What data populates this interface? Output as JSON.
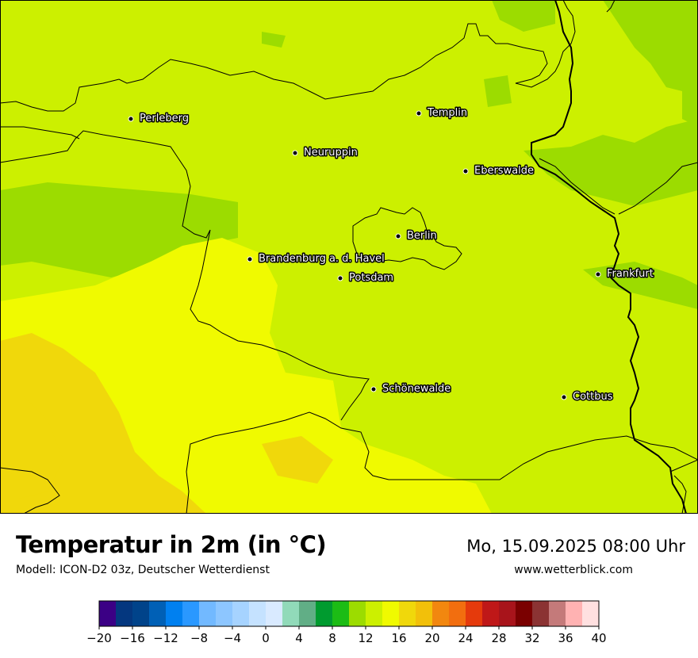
{
  "title": "Temperatur in 2m (in °C)",
  "model": "Modell: ICON-D2 03z, Deutscher Wetterdienst",
  "datetime": "Mo, 15.09.2025 08:00 Uhr",
  "website": "www.wetterblick.com",
  "cities": [
    {
      "name": "Perleberg"
    },
    {
      "name": "Templin"
    },
    {
      "name": "Neuruppin"
    },
    {
      "name": "Eberswalde"
    },
    {
      "name": "Berlin"
    },
    {
      "name": "Brandenburg a. d. Havel"
    },
    {
      "name": "Potsdam"
    },
    {
      "name": "Frankfurt"
    },
    {
      "name": "Schönewalde"
    },
    {
      "name": "Cottbus"
    }
  ],
  "colorbar": {
    "min": -20,
    "max": 40,
    "step": 2,
    "tick_labels": [
      "−20",
      "−16",
      "−12",
      "−8",
      "−4",
      "0",
      "4",
      "8",
      "12",
      "16",
      "20",
      "24",
      "28",
      "32",
      "36",
      "40"
    ],
    "colors": [
      "#3b0085",
      "#04377f",
      "#00438a",
      "#0060b6",
      "#0080f0",
      "#2a98ff",
      "#72b9ff",
      "#8dc6ff",
      "#a6d3ff",
      "#c5e2ff",
      "#d9eaff",
      "#91dab9",
      "#61ae86",
      "#009b2f",
      "#1cbc15",
      "#9cdc00",
      "#ccf000",
      "#f0fa00",
      "#f0d80b",
      "#f2c00a",
      "#f2870f",
      "#f26e0f",
      "#e53a0c",
      "#bf1818",
      "#a8141b",
      "#7a0000",
      "#8b3333",
      "#c47a7a",
      "#ffb2b2",
      "#ffe0e0"
    ]
  }
}
